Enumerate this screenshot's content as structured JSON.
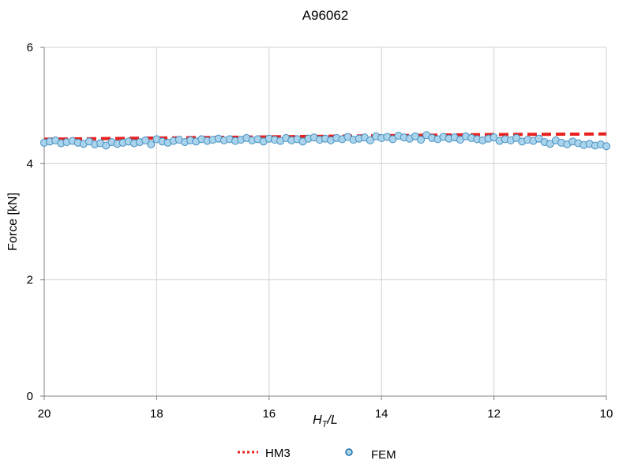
{
  "chart_data": {
    "type": "scatter",
    "title": "A96062",
    "xlabel_main": "H",
    "xlabel_sub": "T",
    "xlabel_tail": "/L",
    "ylabel": "Force [kN]",
    "xlim": [
      20,
      10
    ],
    "ylim": [
      0,
      6
    ],
    "x_reversed": true,
    "x_ticks": [
      "20",
      "18",
      "16",
      "14",
      "12",
      "10"
    ],
    "y_ticks": [
      "0",
      "2",
      "4",
      "6"
    ],
    "grid": true,
    "legend_position": "bottom",
    "series": [
      {
        "name": "HM3",
        "style": "dashed-line",
        "color": "#e8211f",
        "x": [
          20,
          18,
          16,
          14,
          12,
          10
        ],
        "y": [
          4.42,
          4.44,
          4.46,
          4.48,
          4.5,
          4.51
        ]
      },
      {
        "name": "FEM",
        "style": "markers",
        "color": "#a9d4ec",
        "edge_color": "#4a90c0",
        "x": [
          20.0,
          19.9,
          19.8,
          19.7,
          19.6,
          19.5,
          19.4,
          19.3,
          19.2,
          19.1,
          19.0,
          18.9,
          18.8,
          18.7,
          18.6,
          18.5,
          18.4,
          18.3,
          18.2,
          18.1,
          18.0,
          17.9,
          17.8,
          17.7,
          17.6,
          17.5,
          17.4,
          17.3,
          17.2,
          17.1,
          17.0,
          16.9,
          16.8,
          16.7,
          16.6,
          16.5,
          16.4,
          16.3,
          16.2,
          16.1,
          16.0,
          15.9,
          15.8,
          15.7,
          15.6,
          15.5,
          15.4,
          15.3,
          15.2,
          15.1,
          15.0,
          14.9,
          14.8,
          14.7,
          14.6,
          14.5,
          14.4,
          14.3,
          14.2,
          14.1,
          14.0,
          13.9,
          13.8,
          13.7,
          13.6,
          13.5,
          13.4,
          13.3,
          13.2,
          13.1,
          13.0,
          12.9,
          12.8,
          12.7,
          12.6,
          12.5,
          12.4,
          12.3,
          12.2,
          12.1,
          12.0,
          11.9,
          11.8,
          11.7,
          11.6,
          11.5,
          11.4,
          11.3,
          11.2,
          11.1,
          11.0,
          10.9,
          10.8,
          10.7,
          10.6,
          10.5,
          10.4,
          10.3,
          10.2,
          10.1,
          10.0
        ],
        "y": [
          4.36,
          4.38,
          4.4,
          4.35,
          4.37,
          4.39,
          4.36,
          4.34,
          4.38,
          4.33,
          4.35,
          4.31,
          4.37,
          4.34,
          4.36,
          4.38,
          4.35,
          4.37,
          4.4,
          4.33,
          4.42,
          4.38,
          4.36,
          4.39,
          4.41,
          4.37,
          4.4,
          4.38,
          4.42,
          4.39,
          4.41,
          4.43,
          4.4,
          4.42,
          4.39,
          4.41,
          4.44,
          4.4,
          4.42,
          4.38,
          4.43,
          4.41,
          4.39,
          4.44,
          4.4,
          4.42,
          4.38,
          4.43,
          4.45,
          4.41,
          4.43,
          4.4,
          4.44,
          4.42,
          4.46,
          4.41,
          4.43,
          4.45,
          4.4,
          4.47,
          4.44,
          4.46,
          4.42,
          4.48,
          4.45,
          4.43,
          4.47,
          4.41,
          4.49,
          4.44,
          4.42,
          4.46,
          4.43,
          4.45,
          4.41,
          4.47,
          4.44,
          4.42,
          4.4,
          4.43,
          4.45,
          4.39,
          4.42,
          4.4,
          4.44,
          4.38,
          4.41,
          4.39,
          4.43,
          4.37,
          4.34,
          4.4,
          4.36,
          4.33,
          4.38,
          4.35,
          4.32,
          4.34,
          4.31,
          4.33,
          4.3
        ]
      }
    ]
  }
}
